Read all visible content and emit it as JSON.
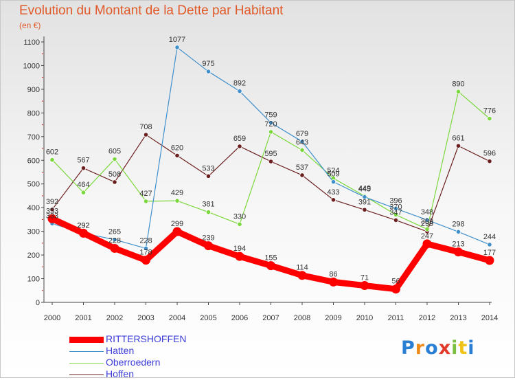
{
  "title": "Evolution du Montant de la Dette par Habitant",
  "unit": "(en €)",
  "logo": "Proxiti",
  "chart_data": {
    "type": "line",
    "title": "Evolution du Montant de la Dette par Habitant",
    "ylabel": "(en €)",
    "xlabel": "",
    "categories": [
      "2000",
      "2001",
      "2002",
      "2003",
      "2004",
      "2005",
      "2006",
      "2007",
      "2008",
      "2009",
      "2010",
      "2011",
      "2012",
      "2013",
      "2014"
    ],
    "ylim": [
      0,
      1100
    ],
    "yticks": [
      0,
      100,
      200,
      300,
      400,
      500,
      600,
      700,
      800,
      900,
      1000,
      1100
    ],
    "grid": false,
    "legend_position": "bottom-left",
    "series": [
      {
        "name": "RITTERSHOFFEN",
        "color": "#ff0000",
        "values": [
          353,
          292,
          228,
          178,
          299,
          239,
          194,
          155,
          114,
          86,
          71,
          56,
          247,
          213,
          177
        ],
        "labels": [
          "353",
          "292",
          "228",
          "178",
          "299",
          "239",
          "194",
          "155",
          "114",
          "86",
          "71",
          "56",
          "247",
          "213",
          "177"
        ]
      },
      {
        "name": "Hatten",
        "color": "#3f8fcb",
        "values": [
          333,
          292,
          265,
          228,
          1077,
          975,
          892,
          759,
          679,
          509,
          445,
          396,
          348,
          298,
          244
        ],
        "labels": [
          "333",
          "292",
          "265",
          "228",
          "1077",
          "975",
          "892",
          "759",
          "679",
          "509",
          "445",
          "396",
          "348",
          "298",
          "244"
        ]
      },
      {
        "name": "Oberroedern",
        "color": "#7bd83c",
        "values": [
          602,
          464,
          605,
          427,
          429,
          381,
          330,
          720,
          643,
          524,
          449,
          370,
          309,
          890,
          776
        ],
        "labels": [
          "602",
          "464",
          "605",
          "427",
          "429",
          "381",
          "330",
          "720",
          "643",
          "524",
          "449",
          "370",
          "309",
          "890",
          "776"
        ]
      },
      {
        "name": "Hoffen",
        "color": "#6b1f1f",
        "values": [
          392,
          567,
          508,
          708,
          620,
          533,
          659,
          595,
          537,
          433,
          391,
          347,
          299,
          661,
          596
        ],
        "labels": [
          "392",
          "567",
          "508",
          "708",
          "620",
          "533",
          "659",
          "595",
          "537",
          "433",
          "391",
          "347",
          "299",
          "661",
          "596"
        ]
      }
    ]
  },
  "colors": {
    "title": "#e05a2a",
    "axis": "#444444",
    "tick_marks": "#cc2222",
    "legend_text": "#3b3bd8"
  }
}
